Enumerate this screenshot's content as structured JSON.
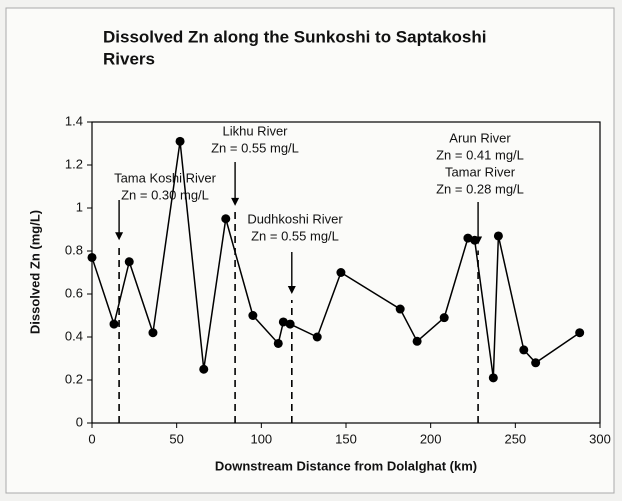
{
  "chart_data": {
    "type": "line",
    "title": [
      "Dissolved Zn along the Sunkoshi to Saptakoshi",
      "Rivers"
    ],
    "x_label": "Downstream Distance from Dolalghat (km)",
    "y_label": "Dissolved Zn (mg/L)",
    "x": [
      0,
      13,
      22,
      36,
      52,
      66,
      79,
      95,
      110,
      113,
      117,
      133,
      147,
      182,
      192,
      208,
      222,
      226,
      237,
      240,
      255,
      262,
      288
    ],
    "series": [
      {
        "color": "#000000",
        "values": [
          0.77,
          0.46,
          0.75,
          0.42,
          1.31,
          0.25,
          0.95,
          0.5,
          0.37,
          0.47,
          0.46,
          0.4,
          0.7,
          0.53,
          0.38,
          0.49,
          0.86,
          0.85,
          0.21,
          0.87,
          0.34,
          0.28,
          0.42
        ]
      }
    ],
    "xlim": [
      0,
      300
    ],
    "xticks": [
      0,
      50,
      100,
      150,
      200,
      250,
      300
    ],
    "ylim": [
      0,
      1.4
    ],
    "yticks": [
      0,
      0.2,
      0.4,
      0.6,
      0.8,
      1,
      1.2,
      1.4
    ],
    "annotations": [
      {
        "x": 16,
        "y": 0.85,
        "text": [
          "Tama Koshi River",
          "Zn = 0.30 mg/L"
        ]
      },
      {
        "x": 84.5,
        "y": 1.01,
        "text": [
          "Likhu River",
          "Zn = 0.55 mg/L"
        ]
      },
      {
        "x": 118,
        "y": 0.6,
        "text": [
          "Dudhkoshi River",
          "Zn = 0.55 mg/L"
        ]
      },
      {
        "x": 228,
        "y": 0.83,
        "text": [
          "Arun River",
          "Zn = 0.41 mg/L",
          "Tamar River",
          "Zn = 0.28 mg/L"
        ]
      }
    ]
  }
}
